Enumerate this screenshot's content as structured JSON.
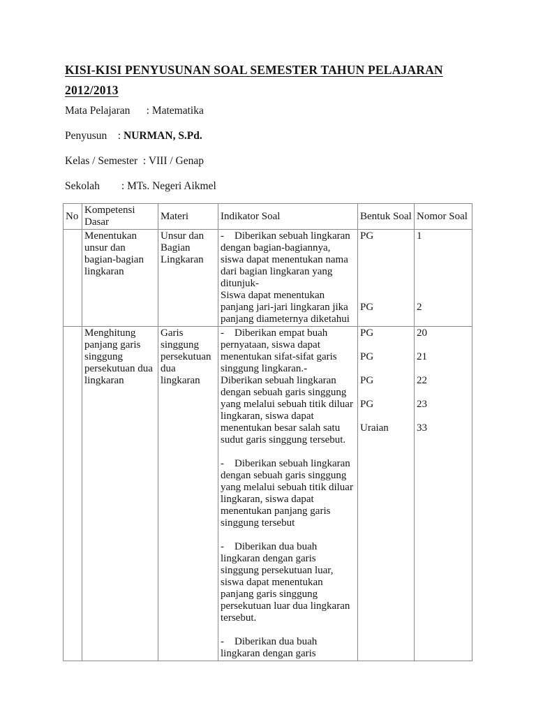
{
  "page": {
    "title_lines": [
      "KISI-KISI PENYUSUNAN SOAL SEMESTER TAHUN PELAJARAN",
      "2012/2013"
    ],
    "meta": [
      {
        "text": "Mata Pelajaran      : Matematika",
        "bold": ""
      },
      {
        "text": "Penyusun    : ",
        "bold": "NURMAN, S.Pd."
      },
      {
        "text": "Kelas / Semester  : VIII / Genap",
        "bold": ""
      },
      {
        "text": "Sekolah        : MTs. Negeri Aikmel",
        "bold": ""
      }
    ]
  },
  "table": {
    "headers": [
      "No",
      "Kompetensi Dasar",
      "Materi",
      "Indikator Soal",
      "Bentuk Soal",
      "Nomor Soal"
    ],
    "rows": [
      {
        "no": "",
        "kompetensi": [
          "Menentukan",
          "unsur dan",
          "bagian-bagian",
          "lingkaran"
        ],
        "materi": [
          "Unsur dan",
          "Bagian",
          "Lingkaran"
        ],
        "indikator": [
          "-    Diberikan sebuah lingkaran",
          "dengan bagian-bagiannya,",
          "siswa dapat menentukan nama",
          "dari bagian lingkaran yang",
          "ditunjuk-",
          "Siswa dapat menentukan",
          "panjang jari-jari lingkaran jika",
          "panjang diameternya diketahui"
        ],
        "bentuk": [
          "PG",
          "",
          "",
          "",
          "",
          "",
          "PG"
        ],
        "nomor": [
          "1",
          "",
          "",
          "",
          "",
          "",
          "2"
        ]
      },
      {
        "no": "",
        "kompetensi": [
          "Menghitung",
          "panjang garis",
          "singgung",
          "persekutuan dua",
          "lingkaran"
        ],
        "materi": [
          "Garis",
          "singgung",
          "persekutuan",
          "dua",
          "lingkaran"
        ],
        "indikator": [
          "-    Diberikan empat buah",
          "pernyataan, siswa dapat",
          "menentukan sifat-sifat garis",
          "singgung lingkaran.-",
          "Diberikan sebuah lingkaran",
          "dengan sebuah garis singgung",
          "yang melalui sebuah titik diluar",
          "lingkaran, siswa dapat",
          "menentukan besar salah satu",
          "sudut garis singgung tersebut.",
          "",
          "-    Diberikan sebuah lingkaran",
          "dengan sebuah garis singgung",
          "yang melalui sebuah titik diluar",
          "lingkaran, siswa dapat",
          "menentukan panjang garis",
          "singgung tersebut",
          "",
          "-    Diberikan dua buah",
          "lingkaran dengan garis",
          "singgung persekutuan luar,",
          "siswa dapat menentukan",
          "panjang garis singgung",
          "persekutuan luar dua lingkaran",
          "tersebut.",
          "",
          "-    Diberikan dua buah",
          "lingkaran dengan garis"
        ],
        "bentuk": [
          "PG",
          "",
          "PG",
          "",
          "PG",
          "",
          "PG",
          "",
          "Uraian"
        ],
        "nomor": [
          "20",
          "",
          "21",
          "",
          "22",
          "",
          "23",
          "",
          "33"
        ]
      }
    ]
  }
}
